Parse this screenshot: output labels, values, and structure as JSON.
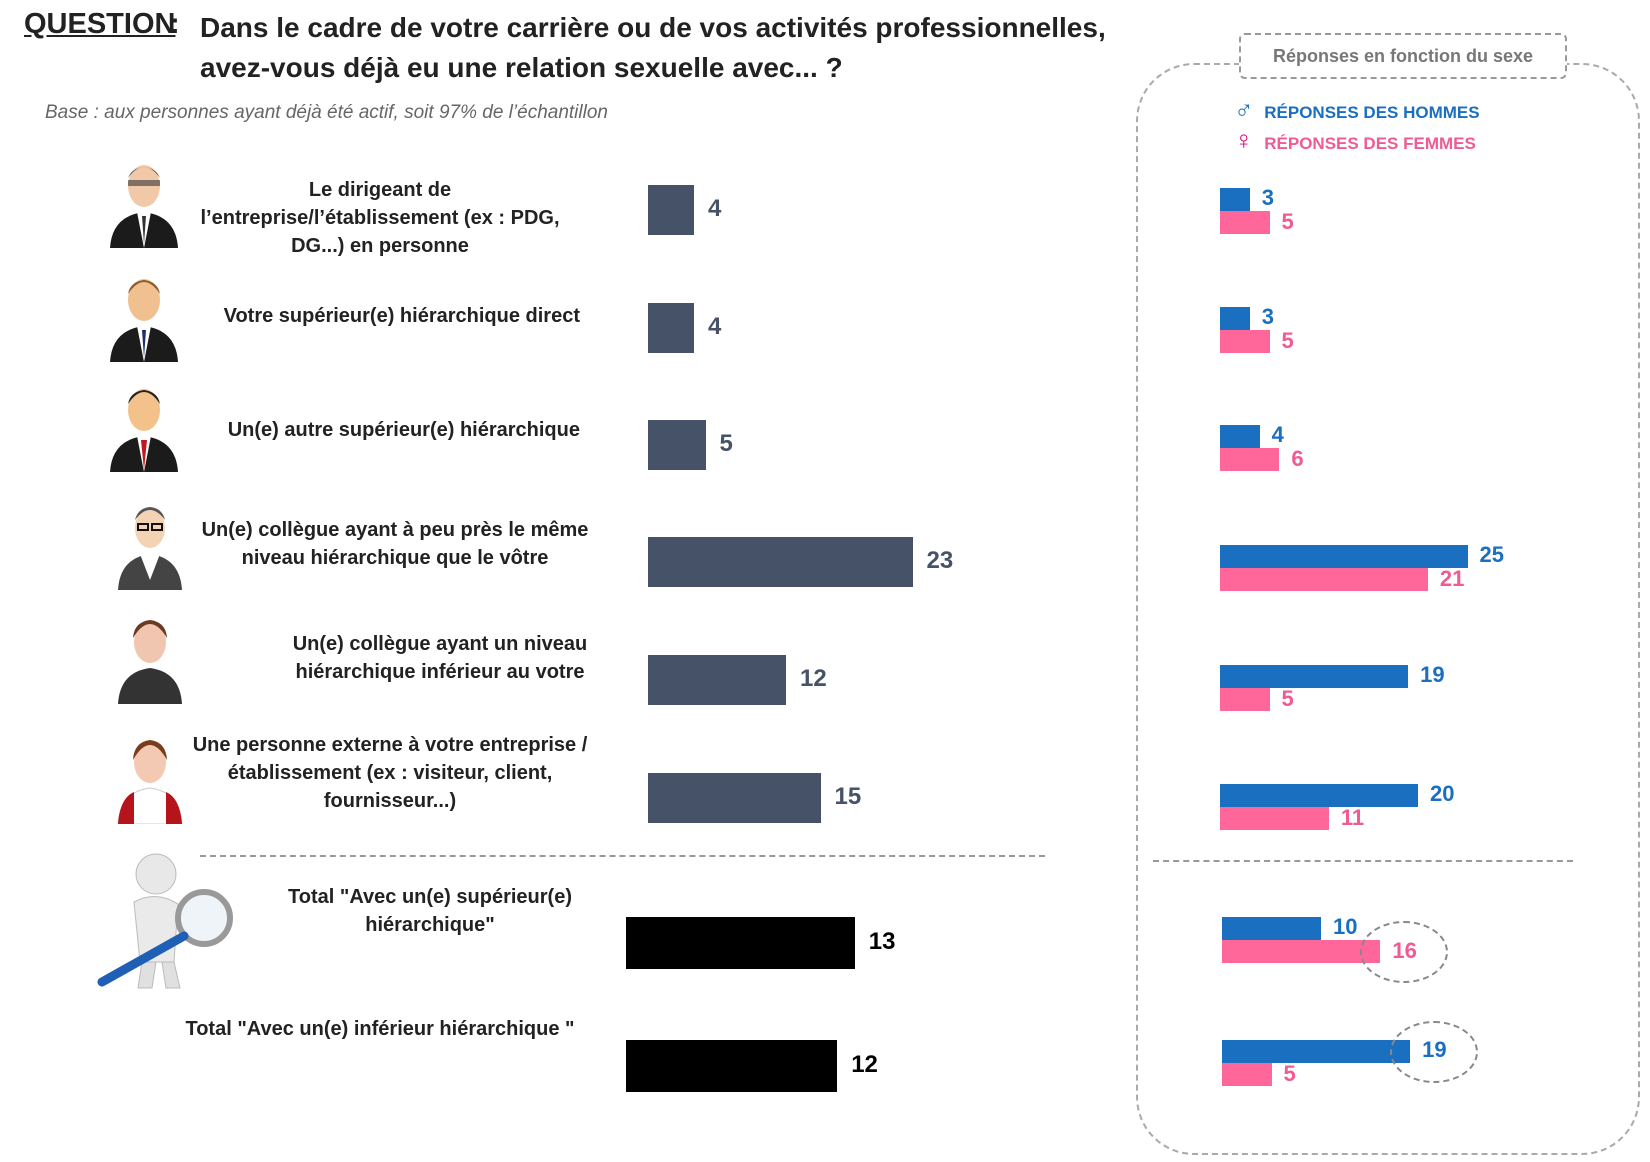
{
  "header": {
    "question_label": "QUESTION",
    "question_colon": ":",
    "question_text": "Dans le cadre de votre carrière ou de vos activités professionnelles, avez-vous déjà eu une relation sexuelle avec... ?",
    "base_text": "Base : aux personnes ayant déjà été actif, soit 97% de l’échantillon"
  },
  "side_panel": {
    "title": "Réponses en fonction du sexe",
    "legend_men": "RÉPONSES DES HOMMES",
    "legend_women": "RÉPONSES DES FEMMES",
    "men_symbol": "♂",
    "women_symbol": "♀"
  },
  "colors": {
    "main_bar": "#465267",
    "total_bar": "#000000",
    "men": "#1a6fc0",
    "women": "#ff6699"
  },
  "chart_data": [
    {
      "type": "bar",
      "orientation": "horizontal",
      "categories": [
        "Le dirigeant de l’entreprise/l’établissement (ex : PDG, DG...) en personne",
        "Votre supérieur(e) hiérarchique direct",
        "Un(e) autre supérieur(e) hiérarchique",
        "Un(e) collègue ayant à peu près le même niveau hiérarchique que le vôtre",
        "Un(e) collègue ayant un niveau hiérarchique inférieur au votre",
        "Une personne externe à votre entreprise / établissement (ex : visiteur, client, fournisseur...)",
        "Total \"Avec un(e)  supérieur(e) hiérarchique\"",
        "Total \"Avec un(e) inférieur hiérarchique \""
      ],
      "values": [
        4,
        4,
        5,
        23,
        12,
        15,
        13,
        12
      ]
    },
    {
      "type": "bar",
      "orientation": "horizontal",
      "title": "Réponses en fonction du sexe",
      "categories": [
        "Le dirigeant de l’entreprise/l’établissement (ex : PDG, DG...) en personne",
        "Votre supérieur(e) hiérarchique direct",
        "Un(e) autre supérieur(e) hiérarchique",
        "Un(e) collègue ayant à peu près le même niveau hiérarchique que le vôtre",
        "Un(e) collègue ayant un niveau hiérarchique inférieur au votre",
        "Une personne externe à votre entreprise / établissement (ex : visiteur, client, fournisseur...)",
        "Total \"Avec un(e)  supérieur(e) hiérarchique\"",
        "Total \"Avec un(e) inférieur hiérarchique \""
      ],
      "series": [
        {
          "name": "RÉPONSES DES HOMMES",
          "values": [
            3,
            3,
            4,
            25,
            19,
            20,
            10,
            19
          ]
        },
        {
          "name": "RÉPONSES DES FEMMES",
          "values": [
            5,
            5,
            6,
            21,
            5,
            11,
            16,
            5
          ]
        }
      ],
      "highlighted": [
        {
          "category_index": 6,
          "series": "RÉPONSES DES FEMMES"
        },
        {
          "category_index": 7,
          "series": "RÉPONSES DES HOMMES"
        }
      ]
    }
  ]
}
